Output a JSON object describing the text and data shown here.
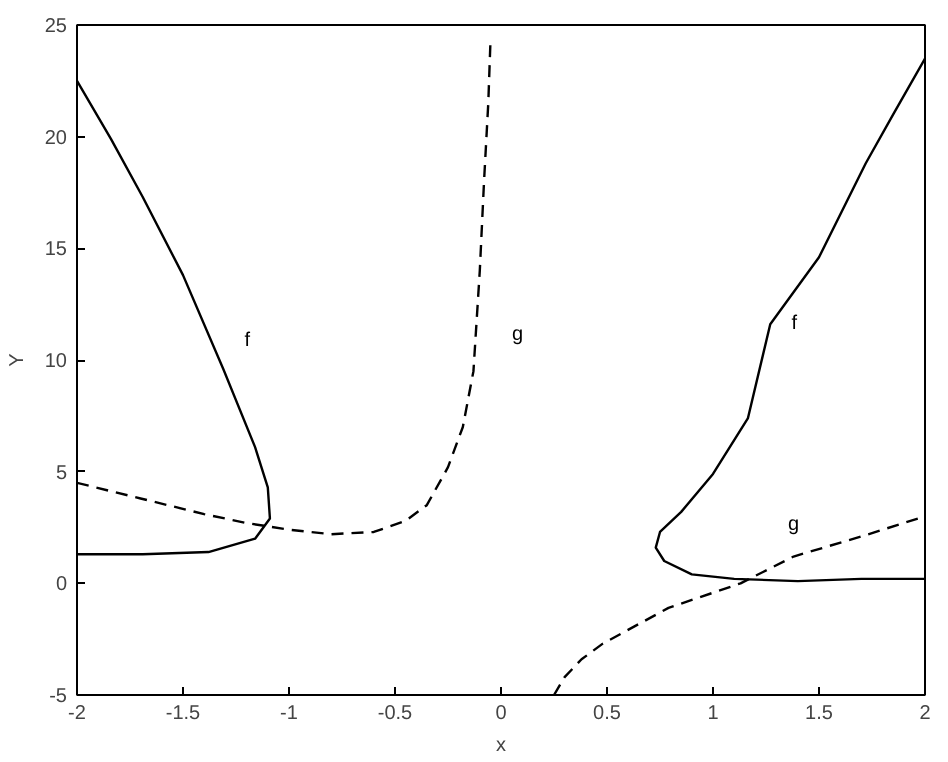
{
  "chart_data": {
    "type": "line",
    "xlabel": "x",
    "ylabel": "Y",
    "xlim": [
      -2,
      2
    ],
    "ylim": [
      -5,
      25
    ],
    "xticks": [
      -2,
      -1.5,
      -1,
      -0.5,
      0,
      0.5,
      1,
      1.5,
      2
    ],
    "yticks": [
      -5,
      0,
      5,
      10,
      15,
      20,
      25
    ],
    "series": [
      {
        "name": "f",
        "color": "#000000",
        "line_style": "solid",
        "x": [
          -2,
          -1.84,
          -1.69,
          -1.5,
          -1.31,
          -1.16,
          -1.1,
          -1.09,
          -1.16,
          -1.38,
          -1.69,
          -2
        ],
        "values": [
          22.5,
          19.9,
          17.3,
          13.8,
          9.6,
          6.1,
          4.3,
          2.9,
          2.0,
          1.4,
          1.3,
          1.3
        ]
      },
      {
        "name": "g",
        "color": "#000000",
        "line_style": "dashed",
        "x": [
          -2,
          -1.7,
          -1.4,
          -1.2,
          -1.0,
          -0.8,
          -0.6,
          -0.45,
          -0.35,
          -0.25,
          -0.18,
          -0.13,
          -0.1,
          -0.08,
          -0.06,
          -0.05
        ],
        "values": [
          4.5,
          3.8,
          3.1,
          2.7,
          2.4,
          2.2,
          2.3,
          2.8,
          3.5,
          5.2,
          7.0,
          9.5,
          14,
          18,
          21.5,
          24.2
        ]
      },
      {
        "name": "f",
        "color": "#000000",
        "line_style": "solid",
        "x": [
          2,
          1.85,
          1.72,
          1.5,
          1.27,
          1.165,
          1.0,
          0.85,
          0.75,
          0.73,
          0.77,
          0.9,
          1.1,
          1.4,
          1.7,
          2
        ],
        "values": [
          23.5,
          21.0,
          18.8,
          14.6,
          11.6,
          7.4,
          4.9,
          3.2,
          2.3,
          1.6,
          1.0,
          0.4,
          0.2,
          0.1,
          0.2,
          0.2
        ]
      },
      {
        "name": "g",
        "color": "#000000",
        "line_style": "dashed",
        "x": [
          0.25,
          0.3,
          0.38,
          0.48,
          0.79,
          1.13,
          1.38,
          1.7,
          2
        ],
        "values": [
          -5,
          -4.2,
          -3.4,
          -2.7,
          -1.1,
          0,
          1.2,
          2.1,
          3.0
        ]
      }
    ]
  }
}
